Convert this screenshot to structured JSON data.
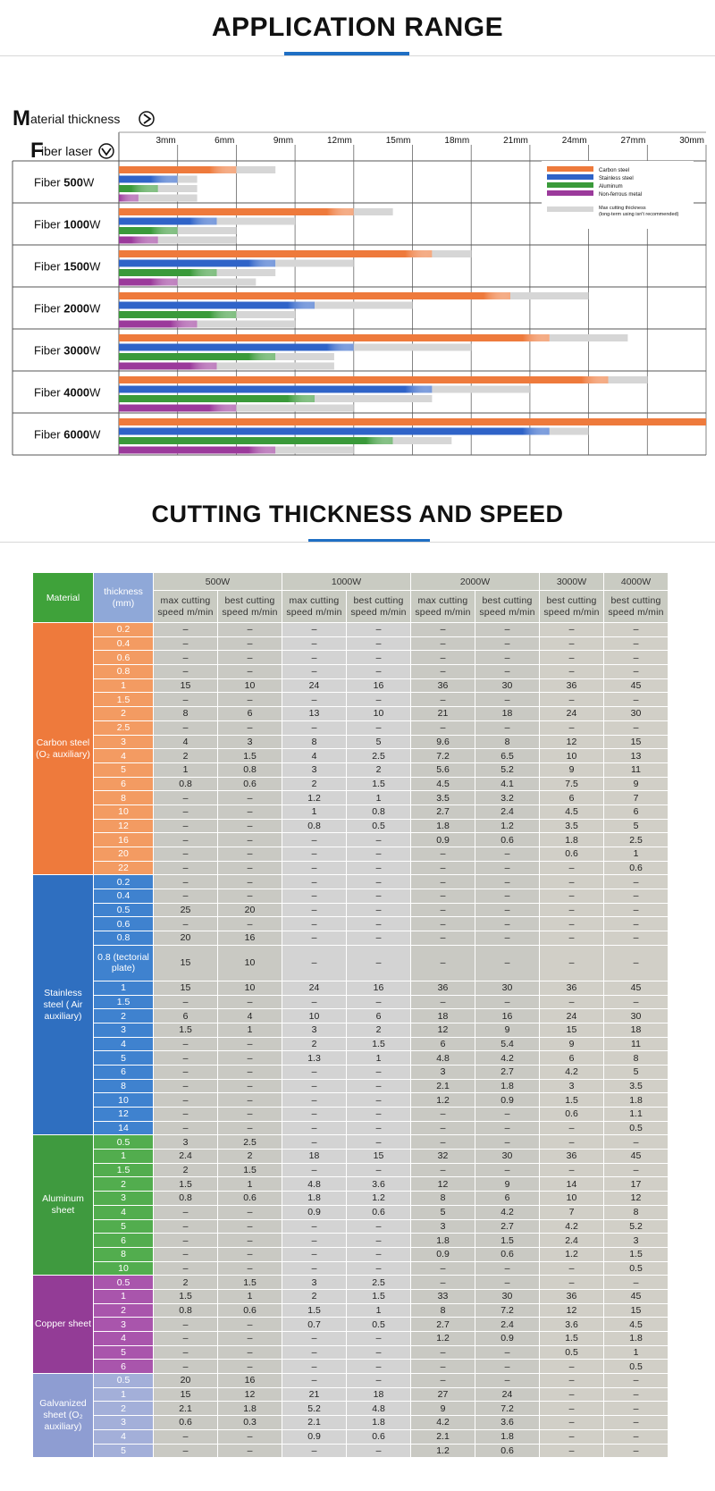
{
  "section1": {
    "title": "APPLICATION RANGE"
  },
  "section2": {
    "title": "CUTTING THICKNESS AND SPEED"
  },
  "chart_data": {
    "type": "bar",
    "orientation": "horizontal",
    "axis_title": "Material thickness",
    "row_title": "Fiber laser",
    "x_unit": "mm",
    "x_ticks": [
      "3mm",
      "6mm",
      "9mm",
      "12mm",
      "15mm",
      "18mm",
      "21mm",
      "24mm",
      "27mm",
      "30mm"
    ],
    "xlim": [
      0,
      30
    ],
    "categories": [
      "Fiber 500W",
      "Fiber 1000W",
      "Fiber 1500W",
      "Fiber 2000W",
      "Fiber 3000W",
      "Fiber 4000W",
      "Fiber 6000W"
    ],
    "category_labels": [
      {
        "prefix": "Fiber ",
        "power": "500",
        "unit": "W"
      },
      {
        "prefix": "Fiber ",
        "power": "1000",
        "unit": "W"
      },
      {
        "prefix": "Fiber ",
        "power": "1500",
        "unit": "W"
      },
      {
        "prefix": "Fiber ",
        "power": "2000",
        "unit": "W"
      },
      {
        "prefix": "Fiber ",
        "power": "3000",
        "unit": "W"
      },
      {
        "prefix": "Fiber ",
        "power": "4000",
        "unit": "W"
      },
      {
        "prefix": "Fiber ",
        "power": "6000",
        "unit": "W"
      }
    ],
    "series": [
      {
        "name": "Carbon steel",
        "color": "#ee7a3c",
        "values": [
          6,
          12,
          16,
          20,
          22,
          25,
          30
        ],
        "max_values": [
          8,
          14,
          18,
          24,
          26,
          27,
          28
        ]
      },
      {
        "name": "Stainless steel",
        "color": "#2f63c8",
        "values": [
          3,
          5,
          8,
          10,
          12,
          16,
          22
        ],
        "max_values": [
          4,
          9,
          12,
          15,
          18,
          21,
          24
        ]
      },
      {
        "name": "Aluminum",
        "color": "#3a9a3a",
        "values": [
          2,
          3,
          5,
          6,
          8,
          10,
          14
        ],
        "max_values": [
          4,
          6,
          8,
          9,
          11,
          16,
          17
        ]
      },
      {
        "name": "Non-ferrous metal",
        "color": "#9b3a9b",
        "values": [
          1,
          2,
          3,
          4,
          5,
          6,
          8
        ],
        "max_values": [
          4,
          6,
          7,
          9,
          11,
          12,
          12
        ]
      }
    ],
    "legend": {
      "placement": "top-right",
      "items": [
        "Carbon steel",
        "Stainless steel",
        "Aluminum",
        "Non-ferrous metal"
      ],
      "max_label": "Max cutting thickness",
      "max_note": "(long-term using isn't recommended)",
      "max_color": "#d6d6d6"
    },
    "grid": true
  },
  "table": {
    "header": {
      "material": "Material",
      "thickness": "thickness (mm)",
      "powers": [
        {
          "label": "500W",
          "span": 2
        },
        {
          "label": "1000W",
          "span": 2
        },
        {
          "label": "2000W",
          "span": 2
        },
        {
          "label": "3000W",
          "span": 1
        },
        {
          "label": "4000W",
          "span": 1
        }
      ],
      "sub": [
        "max cutting speed m/min",
        "best cutting speed m/min",
        "max cutting speed m/min",
        "best cutting speed m/min",
        "max cutting speed m/min",
        "best cutting speed m/min",
        "best cutting speed m/min",
        "best cutting speed m/min"
      ]
    },
    "groups": [
      {
        "material": "Carbon steel (O₂ auxiliary)",
        "color": "#ee7a3c",
        "thk_color": "#f39b62",
        "rows": [
          {
            "t": "0.2",
            "v": [
              "–",
              "–",
              "–",
              "–",
              "–",
              "–",
              "–",
              "–"
            ]
          },
          {
            "t": "0.4",
            "v": [
              "–",
              "–",
              "–",
              "–",
              "–",
              "–",
              "–",
              "–"
            ]
          },
          {
            "t": "0.6",
            "v": [
              "–",
              "–",
              "–",
              "–",
              "–",
              "–",
              "–",
              "–"
            ]
          },
          {
            "t": "0.8",
            "v": [
              "–",
              "–",
              "–",
              "–",
              "–",
              "–",
              "–",
              "–"
            ]
          },
          {
            "t": "1",
            "v": [
              "15",
              "10",
              "24",
              "16",
              "36",
              "30",
              "36",
              "45"
            ]
          },
          {
            "t": "1.5",
            "v": [
              "–",
              "–",
              "–",
              "–",
              "–",
              "–",
              "–",
              "–"
            ]
          },
          {
            "t": "2",
            "v": [
              "8",
              "6",
              "13",
              "10",
              "21",
              "18",
              "24",
              "30"
            ]
          },
          {
            "t": "2.5",
            "v": [
              "–",
              "–",
              "–",
              "–",
              "–",
              "–",
              "–",
              "–"
            ]
          },
          {
            "t": "3",
            "v": [
              "4",
              "3",
              "8",
              "5",
              "9.6",
              "8",
              "12",
              "15"
            ]
          },
          {
            "t": "4",
            "v": [
              "2",
              "1.5",
              "4",
              "2.5",
              "7.2",
              "6.5",
              "10",
              "13"
            ]
          },
          {
            "t": "5",
            "v": [
              "1",
              "0.8",
              "3",
              "2",
              "5.6",
              "5.2",
              "9",
              "11"
            ]
          },
          {
            "t": "6",
            "v": [
              "0.8",
              "0.6",
              "2",
              "1.5",
              "4.5",
              "4.1",
              "7.5",
              "9"
            ]
          },
          {
            "t": "8",
            "v": [
              "–",
              "–",
              "1.2",
              "1",
              "3.5",
              "3.2",
              "6",
              "7"
            ]
          },
          {
            "t": "10",
            "v": [
              "–",
              "–",
              "1",
              "0.8",
              "2.7",
              "2.4",
              "4.5",
              "6"
            ]
          },
          {
            "t": "12",
            "v": [
              "–",
              "–",
              "0.8",
              "0.5",
              "1.8",
              "1.2",
              "3.5",
              "5"
            ]
          },
          {
            "t": "16",
            "v": [
              "–",
              "–",
              "–",
              "–",
              "0.9",
              "0.6",
              "1.8",
              "2.5"
            ]
          },
          {
            "t": "20",
            "v": [
              "–",
              "–",
              "–",
              "–",
              "–",
              "–",
              "0.6",
              "1"
            ]
          },
          {
            "t": "22",
            "v": [
              "–",
              "–",
              "–",
              "–",
              "–",
              "–",
              "–",
              "0.6"
            ]
          }
        ]
      },
      {
        "material": "Stainless steel ( Air auxiliary)",
        "color": "#2f6fc0",
        "thk_color": "#3f82cf",
        "rows": [
          {
            "t": "0.2",
            "v": [
              "–",
              "–",
              "–",
              "–",
              "–",
              "–",
              "–",
              "–"
            ]
          },
          {
            "t": "0.4",
            "v": [
              "–",
              "–",
              "–",
              "–",
              "–",
              "–",
              "–",
              "–"
            ]
          },
          {
            "t": "0.5",
            "v": [
              "25",
              "20",
              "–",
              "–",
              "–",
              "–",
              "–",
              "–"
            ]
          },
          {
            "t": "0.6",
            "v": [
              "–",
              "–",
              "–",
              "–",
              "–",
              "–",
              "–",
              "–"
            ]
          },
          {
            "t": "0.8",
            "v": [
              "20",
              "16",
              "–",
              "–",
              "–",
              "–",
              "–",
              "–"
            ]
          },
          {
            "t": "0.8 (tectorial plate)",
            "tall": true,
            "v": [
              "15",
              "10",
              "–",
              "–",
              "–",
              "–",
              "–",
              "–"
            ]
          },
          {
            "t": "1",
            "v": [
              "15",
              "10",
              "24",
              "16",
              "36",
              "30",
              "36",
              "45"
            ]
          },
          {
            "t": "1.5",
            "v": [
              "–",
              "–",
              "–",
              "–",
              "–",
              "–",
              "–",
              "–"
            ]
          },
          {
            "t": "2",
            "v": [
              "6",
              "4",
              "10",
              "6",
              "18",
              "16",
              "24",
              "30"
            ]
          },
          {
            "t": "3",
            "v": [
              "1.5",
              "1",
              "3",
              "2",
              "12",
              "9",
              "15",
              "18"
            ]
          },
          {
            "t": "4",
            "v": [
              "–",
              "–",
              "2",
              "1.5",
              "6",
              "5.4",
              "9",
              "11"
            ]
          },
          {
            "t": "5",
            "v": [
              "–",
              "–",
              "1.3",
              "1",
              "4.8",
              "4.2",
              "6",
              "8"
            ]
          },
          {
            "t": "6",
            "v": [
              "–",
              "–",
              "–",
              "–",
              "3",
              "2.7",
              "4.2",
              "5"
            ]
          },
          {
            "t": "8",
            "v": [
              "–",
              "–",
              "–",
              "–",
              "2.1",
              "1.8",
              "3",
              "3.5"
            ]
          },
          {
            "t": "10",
            "v": [
              "–",
              "–",
              "–",
              "–",
              "1.2",
              "0.9",
              "1.5",
              "1.8"
            ]
          },
          {
            "t": "12",
            "v": [
              "–",
              "–",
              "–",
              "–",
              "–",
              "–",
              "0.6",
              "1.1"
            ]
          },
          {
            "t": "14",
            "v": [
              "–",
              "–",
              "–",
              "–",
              "–",
              "–",
              "–",
              "0.5"
            ]
          }
        ]
      },
      {
        "material": "Aluminum sheet",
        "color": "#3f9a3f",
        "thk_color": "#52ad4e",
        "rows": [
          {
            "t": "0.5",
            "v": [
              "3",
              "2.5",
              "–",
              "–",
              "–",
              "–",
              "–",
              "–"
            ]
          },
          {
            "t": "1",
            "v": [
              "2.4",
              "2",
              "18",
              "15",
              "32",
              "30",
              "36",
              "45"
            ]
          },
          {
            "t": "1.5",
            "v": [
              "2",
              "1.5",
              "–",
              "–",
              "–",
              "–",
              "–",
              "–"
            ]
          },
          {
            "t": "2",
            "v": [
              "1.5",
              "1",
              "4.8",
              "3.6",
              "12",
              "9",
              "14",
              "17"
            ]
          },
          {
            "t": "3",
            "v": [
              "0.8",
              "0.6",
              "1.8",
              "1.2",
              "8",
              "6",
              "10",
              "12"
            ]
          },
          {
            "t": "4",
            "v": [
              "–",
              "–",
              "0.9",
              "0.6",
              "5",
              "4.2",
              "7",
              "8"
            ]
          },
          {
            "t": "5",
            "v": [
              "–",
              "–",
              "–",
              "–",
              "3",
              "2.7",
              "4.2",
              "5.2"
            ]
          },
          {
            "t": "6",
            "v": [
              "–",
              "–",
              "–",
              "–",
              "1.8",
              "1.5",
              "2.4",
              "3"
            ]
          },
          {
            "t": "8",
            "v": [
              "–",
              "–",
              "–",
              "–",
              "0.9",
              "0.6",
              "1.2",
              "1.5"
            ]
          },
          {
            "t": "10",
            "v": [
              "–",
              "–",
              "–",
              "–",
              "–",
              "–",
              "–",
              "0.5"
            ]
          }
        ]
      },
      {
        "material": "Copper sheet",
        "color": "#933c96",
        "thk_color": "#a955ac",
        "rows": [
          {
            "t": "0.5",
            "v": [
              "2",
              "1.5",
              "3",
              "2.5",
              "–",
              "–",
              "–",
              "–"
            ]
          },
          {
            "t": "1",
            "v": [
              "1.5",
              "1",
              "2",
              "1.5",
              "33",
              "30",
              "36",
              "45"
            ]
          },
          {
            "t": "2",
            "v": [
              "0.8",
              "0.6",
              "1.5",
              "1",
              "8",
              "7.2",
              "12",
              "15"
            ]
          },
          {
            "t": "3",
            "v": [
              "–",
              "–",
              "0.7",
              "0.5",
              "2.7",
              "2.4",
              "3.6",
              "4.5"
            ]
          },
          {
            "t": "4",
            "v": [
              "–",
              "–",
              "–",
              "–",
              "1.2",
              "0.9",
              "1.5",
              "1.8"
            ]
          },
          {
            "t": "5",
            "v": [
              "–",
              "–",
              "–",
              "–",
              "–",
              "–",
              "0.5",
              "1"
            ]
          },
          {
            "t": "6",
            "v": [
              "–",
              "–",
              "–",
              "–",
              "–",
              "–",
              "–",
              "0.5"
            ]
          }
        ]
      },
      {
        "material": "Galvanized sheet (O₂ auxiliary)",
        "color": "#8e9dd2",
        "thk_color": "#a3afd9",
        "rows": [
          {
            "t": "0.5",
            "v": [
              "20",
              "16",
              "–",
              "–",
              "–",
              "–",
              "–",
              "–"
            ]
          },
          {
            "t": "1",
            "v": [
              "15",
              "12",
              "21",
              "18",
              "27",
              "24",
              "–",
              "–"
            ]
          },
          {
            "t": "2",
            "v": [
              "2.1",
              "1.8",
              "5.2",
              "4.8",
              "9",
              "7.2",
              "–",
              "–"
            ]
          },
          {
            "t": "3",
            "v": [
              "0.6",
              "0.3",
              "2.1",
              "1.8",
              "4.2",
              "3.6",
              "–",
              "–"
            ]
          },
          {
            "t": "4",
            "v": [
              "–",
              "–",
              "0.9",
              "0.6",
              "2.1",
              "1.8",
              "–",
              "–"
            ]
          },
          {
            "t": "5",
            "v": [
              "–",
              "–",
              "–",
              "–",
              "1.2",
              "0.6",
              "–",
              "–"
            ]
          }
        ]
      }
    ]
  }
}
